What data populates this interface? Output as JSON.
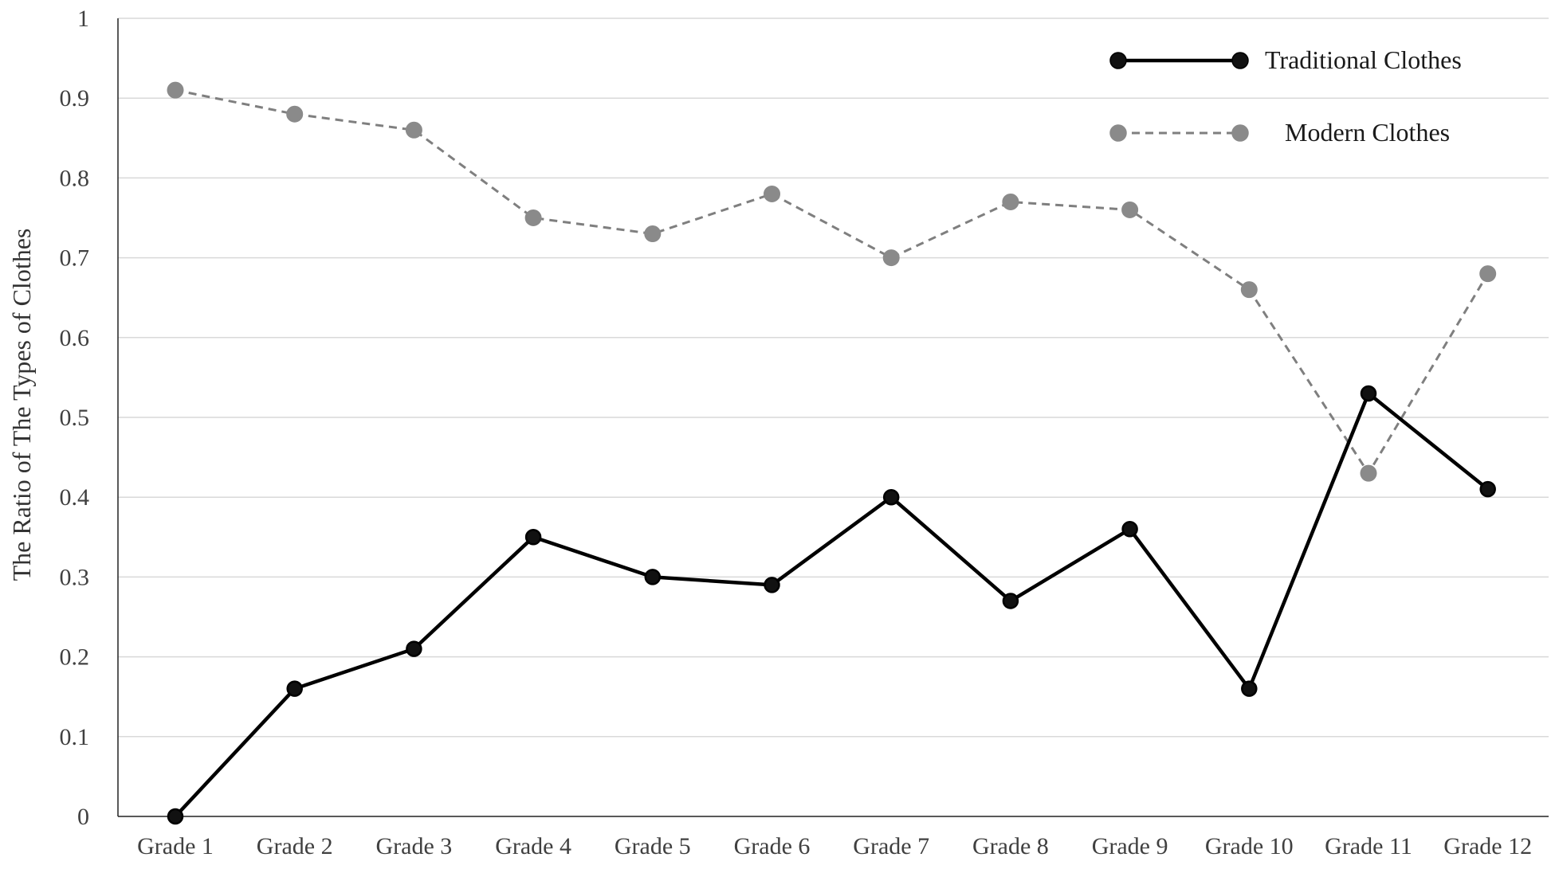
{
  "chart_data": {
    "type": "line",
    "title": "",
    "xlabel": "",
    "ylabel": "The Ratio of The Types of Clothes",
    "ylim": [
      0,
      1
    ],
    "yticks": [
      "0",
      "0.1",
      "0.2",
      "0.3",
      "0.4",
      "0.5",
      "0.6",
      "0.7",
      "0.8",
      "0.9",
      "1"
    ],
    "grid": true,
    "legend_position": "top-right",
    "categories": [
      "Grade 1",
      "Grade 2",
      "Grade 3",
      "Grade 4",
      "Grade 5",
      "Grade 6",
      "Grade 7",
      "Grade 8",
      "Grade 9",
      "Grade 10",
      "Grade 11",
      "Grade 12"
    ],
    "series": [
      {
        "name": "Traditional Clothes",
        "values": [
          0.0,
          0.16,
          0.21,
          0.35,
          0.3,
          0.29,
          0.4,
          0.27,
          0.36,
          0.16,
          0.53,
          0.41
        ],
        "color": "#000000",
        "line_style": "solid"
      },
      {
        "name": "Modern Clothes",
        "values": [
          0.91,
          0.88,
          0.86,
          0.75,
          0.73,
          0.78,
          0.7,
          0.77,
          0.76,
          0.66,
          0.43,
          0.68
        ],
        "color": "#7f7f7f",
        "line_style": "dashed"
      }
    ]
  }
}
